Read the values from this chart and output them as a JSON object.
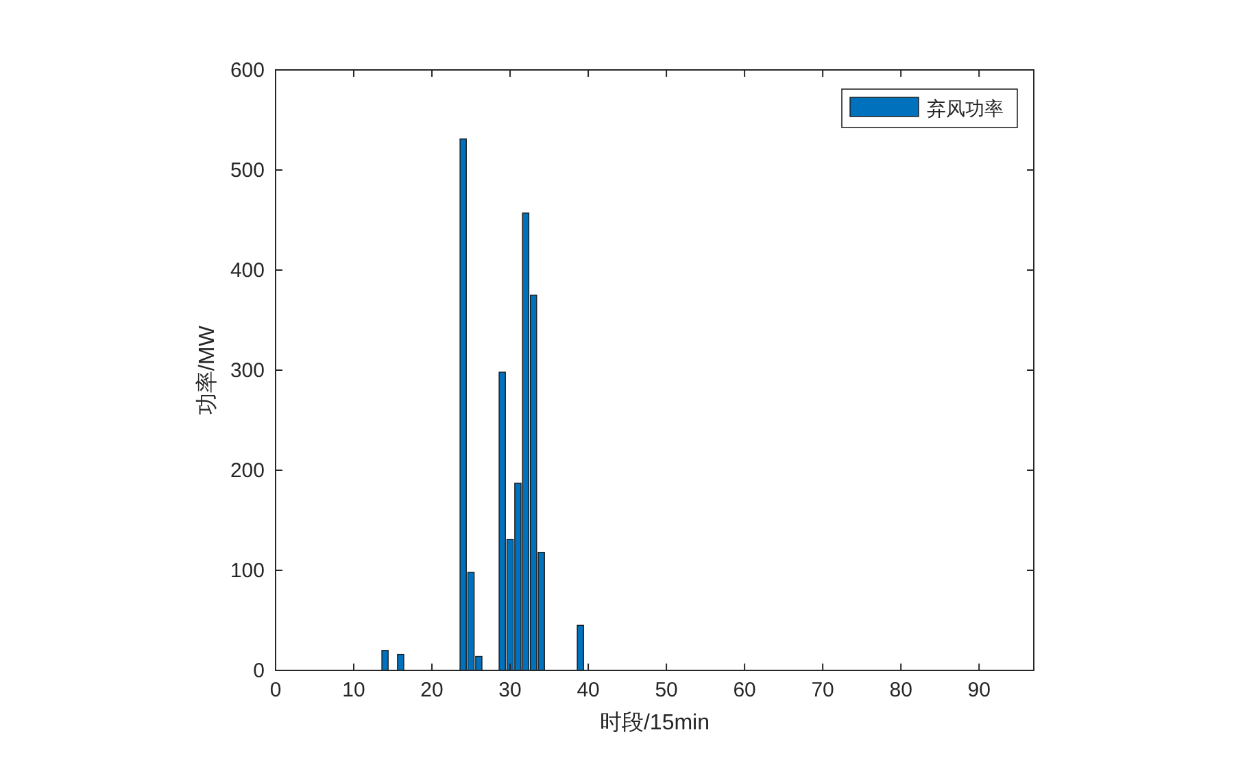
{
  "chart_data": {
    "type": "bar",
    "xlabel": "时段/15min",
    "ylabel": "功率/MW",
    "x": [
      1,
      2,
      3,
      4,
      5,
      6,
      7,
      8,
      9,
      10,
      11,
      12,
      13,
      14,
      15,
      16,
      17,
      18,
      19,
      20,
      21,
      22,
      23,
      24,
      25,
      26,
      27,
      28,
      29,
      30,
      31,
      32,
      33,
      34,
      35,
      36,
      37,
      38,
      39,
      40,
      41,
      42,
      43,
      44,
      45,
      46,
      47,
      48,
      49,
      50,
      51,
      52,
      53,
      54,
      55,
      56,
      57,
      58,
      59,
      60,
      61,
      62,
      63,
      64,
      65,
      66,
      67,
      68,
      69,
      70,
      71,
      72,
      73,
      74,
      75,
      76,
      77,
      78,
      79,
      80,
      81,
      82,
      83,
      84,
      85,
      86,
      87,
      88,
      89,
      90,
      91,
      92,
      93,
      94,
      95,
      96
    ],
    "series": [
      {
        "name": "弃风功率",
        "color": "#0072bd",
        "values": [
          0,
          0,
          0,
          0,
          0,
          0,
          0,
          0,
          0,
          0,
          0,
          0,
          0,
          20,
          0,
          16,
          0,
          0,
          0,
          0,
          0,
          0,
          0,
          531,
          98,
          14,
          0,
          0,
          298,
          131,
          187,
          457,
          375,
          118,
          0,
          0,
          0,
          0,
          45,
          0,
          0,
          0,
          0,
          0,
          0,
          0,
          0,
          0,
          0,
          0,
          0,
          0,
          0,
          0,
          0,
          0,
          0,
          0,
          0,
          0,
          0,
          0,
          0,
          0,
          0,
          0,
          0,
          0,
          0,
          0,
          0,
          0,
          0,
          0,
          0,
          0,
          0,
          0,
          0,
          0,
          0,
          0,
          0,
          0,
          0,
          0,
          0,
          0,
          0,
          0,
          0,
          0,
          0,
          0,
          0,
          0
        ]
      }
    ],
    "xlim": [
      0,
      97
    ],
    "xticks": [
      0,
      10,
      20,
      30,
      40,
      50,
      60,
      70,
      80,
      90
    ],
    "ylim": [
      0,
      600
    ],
    "yticks": [
      0,
      100,
      200,
      300,
      400,
      500,
      600
    ],
    "grid": false,
    "legend": "top right"
  }
}
